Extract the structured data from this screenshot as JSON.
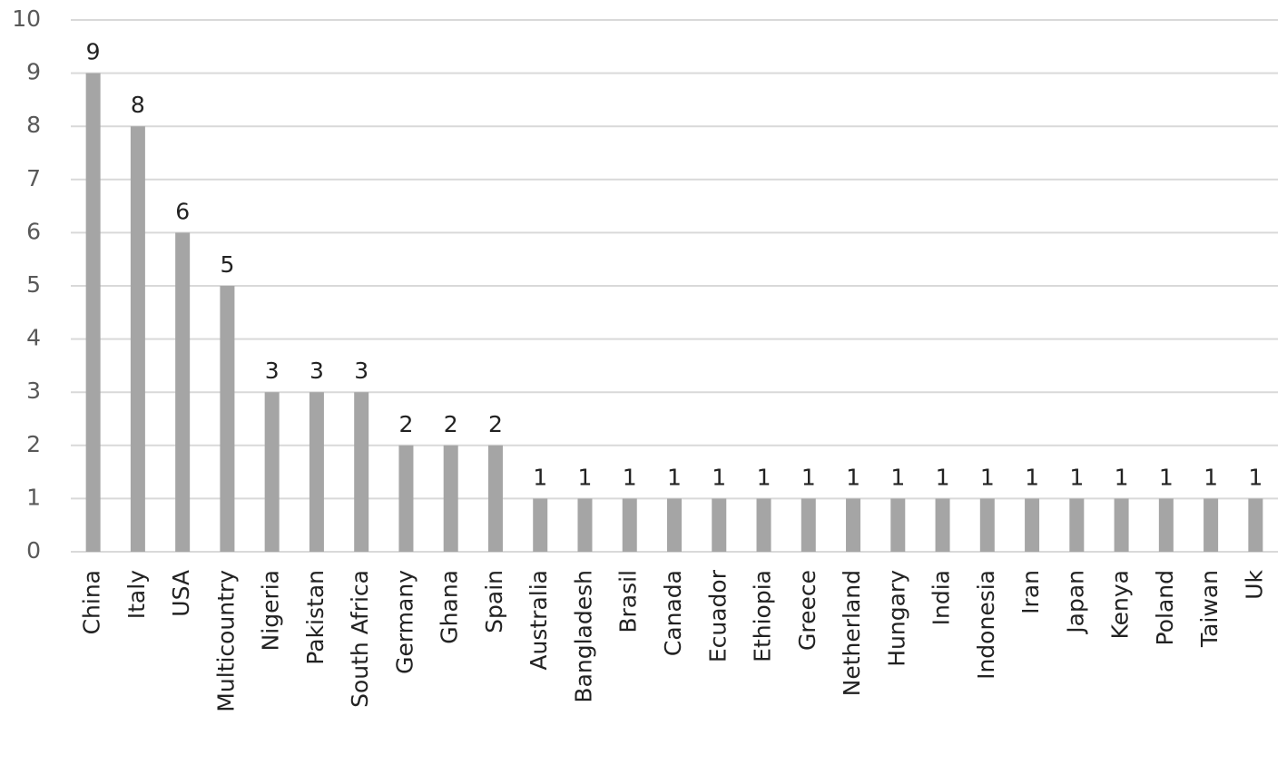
{
  "chart_data": {
    "type": "bar",
    "categories": [
      "China",
      "Italy",
      "USA",
      "Multicountry",
      "Nigeria",
      "Pakistan",
      "South Africa",
      "Germany",
      "Ghana",
      "Spain",
      "Australia",
      "Bangladesh",
      "Brasil",
      "Canada",
      "Ecuador",
      "Ethiopia",
      "Greece",
      "Netherland",
      "Hungary",
      "India",
      "Indonesia",
      "Iran",
      "Japan",
      "Kenya",
      "Poland",
      "Taiwan",
      "Uk"
    ],
    "values": [
      9,
      8,
      6,
      5,
      3,
      3,
      3,
      2,
      2,
      2,
      1,
      1,
      1,
      1,
      1,
      1,
      1,
      1,
      1,
      1,
      1,
      1,
      1,
      1,
      1,
      1,
      1
    ],
    "color": "#a5a5a5",
    "ylim": [
      0,
      10
    ],
    "yticks": [
      0,
      1,
      2,
      3,
      4,
      5,
      6,
      7,
      8,
      9,
      10
    ],
    "grid": true
  }
}
